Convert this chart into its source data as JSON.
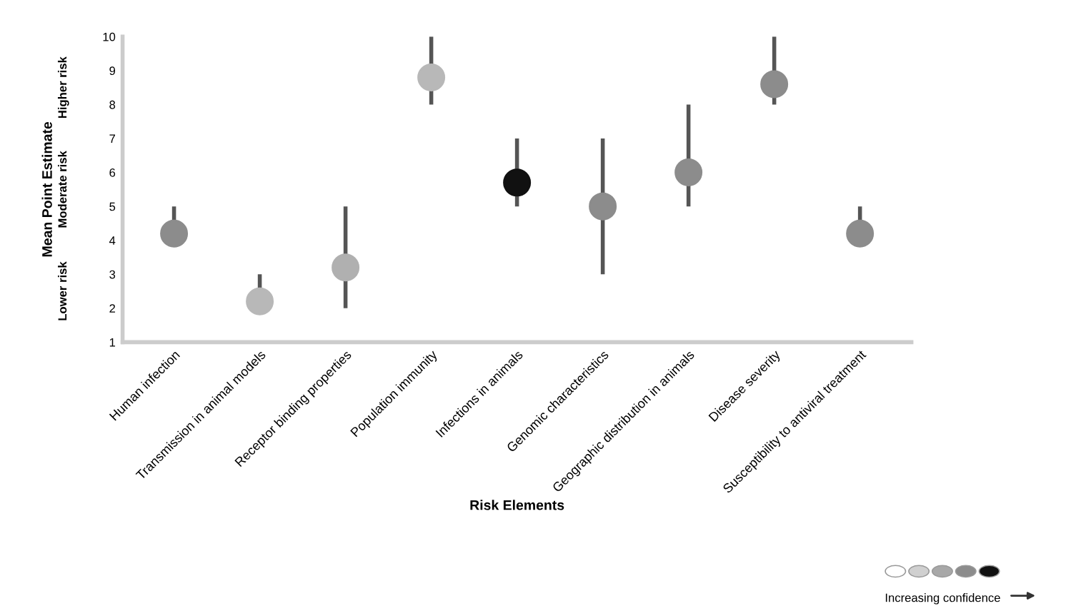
{
  "chart_data": {
    "type": "scatter",
    "xlabel": "Risk Elements",
    "ylabel": "Mean Point Estimate",
    "categories": [
      "Human infection",
      "Transmission in animal models",
      "Receptor binding properties",
      "Population immunity",
      "Infections in animals",
      "Genomic characteristics",
      "Geographic distribution in animals",
      "Disease severity",
      "Susceptibility to antiviral treatment"
    ],
    "series": [
      {
        "values": [
          4.2,
          2.2,
          3.2,
          8.8,
          5.7,
          5.0,
          6.0,
          8.6,
          4.2
        ],
        "colors": [
          "#8c8c8c",
          "#b8b8b8",
          "#b0b0b0",
          "#b8b8b8",
          "#111111",
          "#8c8c8c",
          "#8c8c8c",
          "#8c8c8c",
          "#8c8c8c"
        ],
        "errors": [
          [
            4.2,
            5
          ],
          [
            2.2,
            3
          ],
          [
            2,
            5
          ],
          [
            8,
            10
          ],
          [
            5,
            7
          ],
          [
            3,
            7
          ],
          [
            5,
            8
          ],
          [
            8,
            10
          ],
          [
            4.2,
            5
          ]
        ]
      }
    ],
    "ylim": [
      1,
      10
    ],
    "yticks": [
      1,
      2,
      3,
      4,
      5,
      6,
      7,
      8,
      9,
      10
    ],
    "annotations": [
      "Lower risk",
      "Moderate risk",
      "Higher risk",
      "Increasing confidence"
    ],
    "marker": "circle",
    "grid": false,
    "legend": false
  }
}
